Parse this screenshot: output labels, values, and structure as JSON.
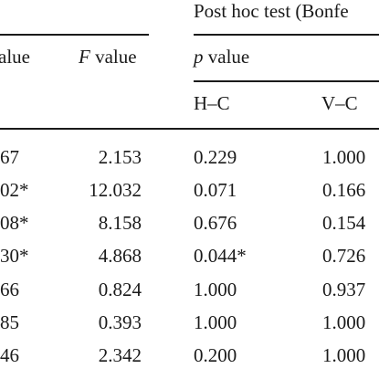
{
  "table": {
    "group_header": "Post hoc test (Bonfe",
    "col1_label_tail": "alue",
    "col2_label": {
      "symbol": "F",
      "word": " value"
    },
    "col3_label": {
      "symbol": "p",
      "word": " value"
    },
    "sub_headers": [
      "H–C",
      "V–C"
    ],
    "rows": [
      [
        "67",
        "2.153",
        "0.229",
        "1.000"
      ],
      [
        "02*",
        "12.032",
        "0.071",
        "0.166"
      ],
      [
        "08*",
        "8.158",
        "0.676",
        "0.154"
      ],
      [
        "30*",
        "4.868",
        "0.044*",
        "0.726"
      ],
      [
        "66",
        "0.824",
        "1.000",
        "0.937"
      ],
      [
        "85",
        "0.393",
        "1.000",
        "1.000"
      ],
      [
        "46",
        "2.342",
        "0.200",
        "1.000"
      ]
    ]
  }
}
